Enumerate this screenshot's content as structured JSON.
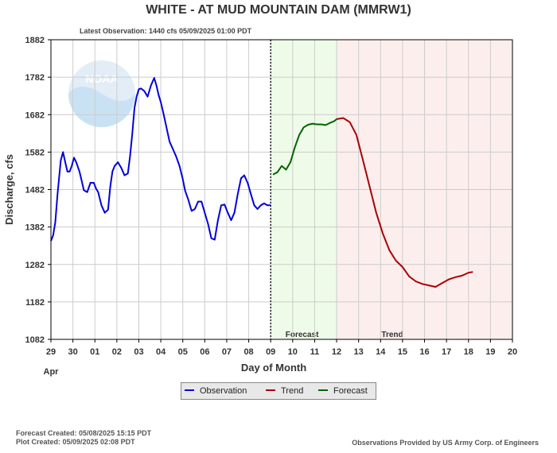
{
  "chart_data": {
    "type": "line",
    "title": "WHITE - AT MUD MOUNTAIN DAM  (MMRW1)",
    "subtitle": "Latest Observation: 1440 cfs 05/09/2025 01:00 PDT",
    "xlabel": "Day of Month",
    "ylabel": "Discharge, cfs",
    "x_month_label": "Apr",
    "ylim": [
      1082,
      1882
    ],
    "y_ticks": [
      1082,
      1182,
      1282,
      1382,
      1482,
      1582,
      1682,
      1782,
      1882
    ],
    "x_ticks": [
      "29",
      "30",
      "01",
      "02",
      "03",
      "04",
      "05",
      "06",
      "07",
      "08",
      "09",
      "10",
      "11",
      "12",
      "13",
      "14",
      "15",
      "16",
      "17",
      "18",
      "19",
      "20"
    ],
    "grid": true,
    "regions": [
      {
        "label": "Forecast",
        "from": 10.0,
        "to": 13.0,
        "color": "#eefbe8"
      },
      {
        "label": "Trend",
        "from": 13.0,
        "to": 21.0,
        "color": "#fdeeee"
      }
    ],
    "latest_obs_x": 10.0,
    "series": [
      {
        "name": "Observation",
        "color": "#0000dd",
        "x": [
          0.0,
          0.1,
          0.2,
          0.3,
          0.45,
          0.55,
          0.65,
          0.75,
          0.85,
          0.95,
          1.05,
          1.15,
          1.3,
          1.4,
          1.5,
          1.65,
          1.8,
          1.95,
          2.05,
          2.15,
          2.3,
          2.45,
          2.6,
          2.7,
          2.8,
          2.9,
          3.05,
          3.2,
          3.35,
          3.5,
          3.6,
          3.7,
          3.8,
          3.9,
          4.0,
          4.1,
          4.25,
          4.4,
          4.55,
          4.7,
          4.8,
          4.9,
          5.0,
          5.1,
          5.25,
          5.4,
          5.55,
          5.7,
          5.85,
          6.0,
          6.1,
          6.25,
          6.4,
          6.55,
          6.7,
          6.85,
          7.0,
          7.15,
          7.3,
          7.45,
          7.6,
          7.75,
          7.9,
          8.05,
          8.2,
          8.35,
          8.5,
          8.65,
          8.8,
          8.95,
          9.1,
          9.25,
          9.4,
          9.55,
          9.7,
          9.85,
          10.0
        ],
        "values": [
          1345,
          1360,
          1395,
          1470,
          1560,
          1582,
          1555,
          1530,
          1530,
          1545,
          1567,
          1555,
          1530,
          1505,
          1480,
          1475,
          1500,
          1500,
          1485,
          1475,
          1440,
          1420,
          1428,
          1490,
          1530,
          1545,
          1555,
          1540,
          1520,
          1525,
          1570,
          1630,
          1700,
          1730,
          1750,
          1752,
          1745,
          1730,
          1760,
          1780,
          1760,
          1735,
          1715,
          1690,
          1650,
          1610,
          1590,
          1570,
          1545,
          1510,
          1480,
          1455,
          1425,
          1430,
          1450,
          1450,
          1420,
          1390,
          1352,
          1348,
          1400,
          1440,
          1442,
          1420,
          1400,
          1420,
          1470,
          1512,
          1520,
          1500,
          1470,
          1440,
          1430,
          1440,
          1445,
          1440,
          1440
        ]
      },
      {
        "name": "Forecast",
        "color": "#006400",
        "x": [
          10.1,
          10.3,
          10.5,
          10.7,
          10.9,
          11.1,
          11.3,
          11.5,
          11.7,
          11.9,
          12.1,
          12.3,
          12.5,
          12.7,
          12.9,
          13.0
        ],
        "values": [
          1522,
          1528,
          1545,
          1535,
          1555,
          1595,
          1628,
          1648,
          1655,
          1658,
          1656,
          1656,
          1654,
          1660,
          1665,
          1670
        ]
      },
      {
        "name": "Trend",
        "color": "#aa0000",
        "x": [
          13.0,
          13.3,
          13.6,
          13.9,
          14.2,
          14.5,
          14.8,
          15.1,
          15.4,
          15.7,
          16.0,
          16.3,
          16.6,
          16.9,
          17.2,
          17.5,
          17.8,
          18.1,
          18.4,
          18.7,
          19.0,
          19.2
        ],
        "values": [
          1670,
          1673,
          1662,
          1628,
          1560,
          1490,
          1420,
          1365,
          1320,
          1292,
          1275,
          1250,
          1237,
          1230,
          1226,
          1222,
          1232,
          1242,
          1248,
          1252,
          1260,
          1262
        ]
      }
    ]
  },
  "legend": {
    "observation": "Observation",
    "trend": "Trend",
    "forecast": "Forecast"
  },
  "footer": {
    "forecast_created": "Forecast Created: 05/08/2025 15:15 PDT",
    "plot_created": "Plot Created: 05/09/2025 02:08 PDT",
    "source": "Observations Provided by US Army Corp. of Engineers"
  },
  "logo_text": "NOAA",
  "colors": {
    "grid": "#cccccc",
    "forecast_region": "#eefbe8",
    "trend_region": "#fdeeee",
    "observation": "#0000dd",
    "forecast": "#006400",
    "trend": "#aa0000"
  }
}
